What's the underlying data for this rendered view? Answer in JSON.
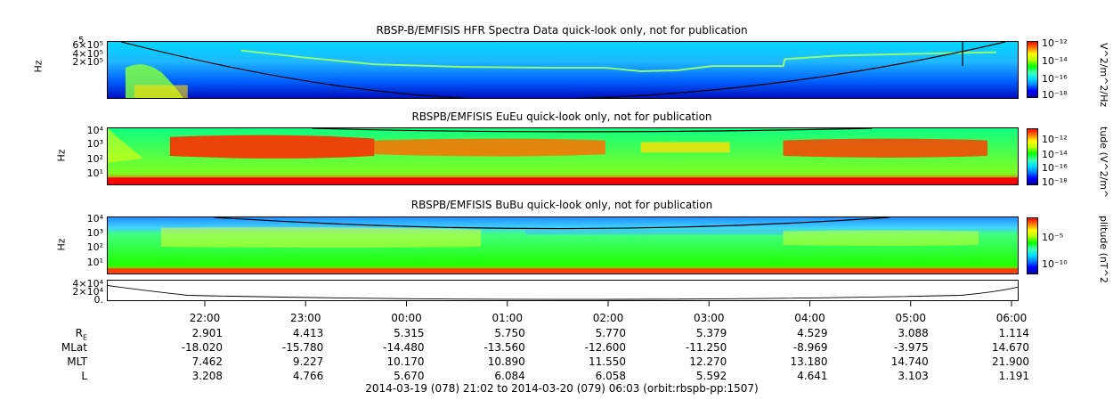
{
  "panels": [
    {
      "title": "RBSP-B/EMFISIS  HFR Spectra Data quick-look only, not for publication",
      "ylabel": "Hz",
      "yticks": [
        "6×10⁵",
        "4×10⁵",
        "2×10⁵"
      ],
      "ytop": "5",
      "cbar_label": "V^2/m^2/Hz",
      "cbar_ticks": [
        "10⁻¹²",
        "10⁻¹⁴",
        "10⁻¹⁶",
        "10⁻¹⁸"
      ]
    },
    {
      "title": "RBSPB/EMFISIS  EuEu quick-look only, not for publication",
      "ylabel": "Hz",
      "yticks": [
        "10⁴",
        "10³",
        "10²",
        "10¹"
      ],
      "cbar_label": "tude (V^2/m^",
      "cbar_ticks": [
        "10⁻¹²",
        "10⁻¹⁴",
        "10⁻¹⁶",
        "10⁻¹⁸"
      ]
    },
    {
      "title": "RBSPB/EMFISIS  BuBu quick-look only, not for publication",
      "ylabel": "Hz",
      "yticks": [
        "10⁴",
        "10³",
        "10²",
        "10¹"
      ],
      "cbar_label": "plitude (nT^2",
      "cbar_ticks": [
        "10⁻⁵",
        "10⁻¹⁰"
      ]
    }
  ],
  "line_panel": {
    "yticks": [
      "4×10⁴",
      "2×10⁴",
      "0."
    ]
  },
  "colors": {
    "jet": [
      "#0000a0",
      "#0000ff",
      "#0080ff",
      "#00e0ff",
      "#40ffb0",
      "#00ff00",
      "#b0ff00",
      "#ffff00",
      "#ff8000",
      "#ff0000"
    ]
  },
  "chart_data": {
    "type": "heatmap",
    "times": [
      "22:00",
      "23:00",
      "00:00",
      "01:00",
      "02:00",
      "03:00",
      "04:00",
      "05:00",
      "06:00"
    ],
    "ephemeris": [
      {
        "name": "R",
        "sub": "E",
        "values": [
          "2.901",
          "4.413",
          "5.315",
          "5.750",
          "5.770",
          "5.379",
          "4.529",
          "3.088",
          "1.114"
        ]
      },
      {
        "name": "MLat",
        "values": [
          "-18.020",
          "-15.780",
          "-14.480",
          "-13.560",
          "-12.600",
          "-11.250",
          "-8.969",
          "-3.975",
          "14.670"
        ]
      },
      {
        "name": "MLT",
        "values": [
          "7.462",
          "9.227",
          "10.170",
          "10.890",
          "11.550",
          "12.270",
          "13.180",
          "14.740",
          "21.900"
        ]
      },
      {
        "name": "L",
        "values": [
          "3.208",
          "4.766",
          "5.670",
          "6.084",
          "6.058",
          "5.592",
          "4.641",
          "3.103",
          "1.191"
        ]
      }
    ],
    "time_range": "2014-03-19 (078) 21:02 to 2014-03-20 (079) 06:03 (orbit:rbspb-pp:1507)"
  }
}
